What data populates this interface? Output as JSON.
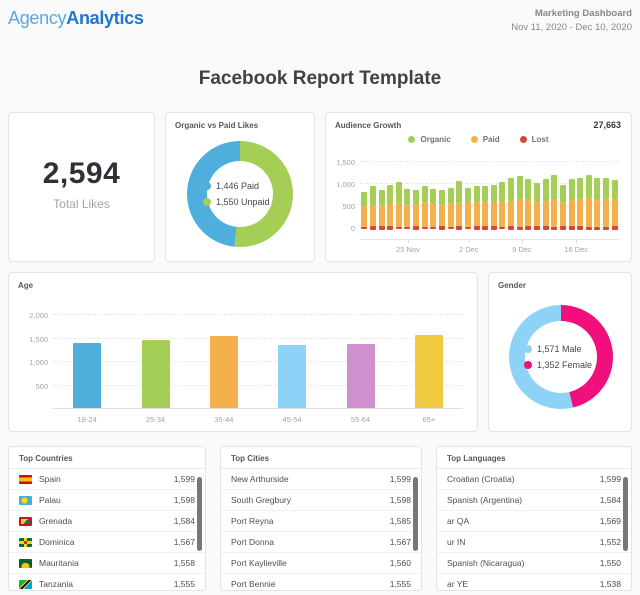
{
  "header": {
    "logo_part1": "Agency",
    "logo_part2": "Analytics",
    "dashboard_title": "Marketing Dashboard",
    "date_range": "Nov 11, 2020 - Dec 10, 2020"
  },
  "page_title": "Facebook Report Template",
  "total_likes": {
    "value": "2,594",
    "label": "Total Likes"
  },
  "colors": {
    "blue": "#4FAEDB",
    "green": "#A4CE55",
    "orange": "#F5B04E",
    "red": "#D0493F",
    "sky": "#8DD3F8",
    "orchid": "#CE90CE",
    "yellow": "#EFC93F",
    "pink": "#F00F7B"
  },
  "chart_data": [
    {
      "id": "organic_vs_paid",
      "type": "pie",
      "title": "Organic vs Paid Likes",
      "legend_position": "center",
      "segments": [
        {
          "label": "1,446 Paid",
          "value": 1446,
          "color": "#4FAEDB"
        },
        {
          "label": "1,550 Unpaid",
          "value": 1550,
          "color": "#A4CE55"
        }
      ],
      "draw": [
        1,
        0
      ]
    },
    {
      "id": "audience_growth",
      "type": "bar",
      "stacked": true,
      "title": "Audience Growth",
      "total": "27,663",
      "legend": [
        {
          "label": "Organic",
          "color": "#A4CE55"
        },
        {
          "label": "Paid",
          "color": "#F5B04E"
        },
        {
          "label": "Lost",
          "color": "#D0493F"
        }
      ],
      "ylim": [
        -150,
        1500
      ],
      "grid": true,
      "yticks": [
        {
          "label": "1,500",
          "value": 1500
        },
        {
          "label": "1,000",
          "value": 1000
        },
        {
          "label": "500",
          "value": 500
        },
        {
          "label": "0",
          "value": 0
        }
      ],
      "xticks": [
        {
          "label": "25 Nov",
          "pos": 0.185
        },
        {
          "label": "2 Dec",
          "pos": 0.42
        },
        {
          "label": "9 Dec",
          "pos": 0.625
        },
        {
          "label": "16 Dec",
          "pos": 0.835
        }
      ],
      "series": [
        {
          "name": "Paid",
          "color": "#F5B04E",
          "values": [
            480,
            470,
            500,
            520,
            540,
            500,
            510,
            560,
            530,
            500,
            520,
            540,
            560,
            570,
            560,
            540,
            580,
            590,
            620,
            600,
            570,
            580,
            640,
            560,
            600,
            640,
            650,
            610,
            630,
            640
          ]
        },
        {
          "name": "Organic",
          "color": "#A4CE55",
          "values": [
            310,
            450,
            330,
            430,
            490,
            370,
            320,
            370,
            320,
            340,
            360,
            500,
            330,
            360,
            370,
            400,
            430,
            510,
            530,
            490,
            420,
            510,
            540,
            400,
            480,
            470,
            520,
            490,
            490,
            420
          ]
        },
        {
          "name": "Lost",
          "color": "#D0493F",
          "values": [
            -60,
            -70,
            -80,
            -75,
            -60,
            -55,
            -70,
            -65,
            -60,
            -70,
            -65,
            -70,
            -60,
            -75,
            -80,
            -70,
            -65,
            -75,
            -85,
            -70,
            -75,
            -80,
            -85,
            -70,
            -75,
            -80,
            -85,
            -90,
            -85,
            -80
          ]
        }
      ]
    },
    {
      "id": "age",
      "type": "bar",
      "title": "Age",
      "categories": [
        "18-24",
        "25-34",
        "35-44",
        "45-54",
        "55-64",
        "65+"
      ],
      "values": [
        1370,
        1430,
        1520,
        1330,
        1350,
        1540
      ],
      "colors": [
        "#4FAEDB",
        "#A4CE55",
        "#F5B04E",
        "#8DD3F8",
        "#CE90CE",
        "#EFC93F"
      ],
      "ylim": [
        0,
        2100
      ],
      "grid": true,
      "yticks": [
        {
          "label": "2,000",
          "value": 2000
        },
        {
          "label": "1,500",
          "value": 1500
        },
        {
          "label": "1,000",
          "value": 1000
        },
        {
          "label": "500",
          "value": 500
        }
      ]
    },
    {
      "id": "gender",
      "type": "pie",
      "title": "Gender",
      "legend_position": "center",
      "segments": [
        {
          "label": "1,571 Male",
          "value": 1571,
          "color": "#8DD3F8"
        },
        {
          "label": "1,352 Female",
          "value": 1352,
          "color": "#F00F7B"
        }
      ],
      "draw": [
        1,
        0
      ]
    }
  ],
  "tables": [
    {
      "title": "Top Countries",
      "rows": [
        {
          "icon": "flag-spain",
          "name": "Spain",
          "value": "1,599"
        },
        {
          "icon": "flag-palau",
          "name": "Palau",
          "value": "1,598"
        },
        {
          "icon": "flag-grenada",
          "name": "Grenada",
          "value": "1,584"
        },
        {
          "icon": "flag-dominica",
          "name": "Dominica",
          "value": "1,567"
        },
        {
          "icon": "flag-mauritania",
          "name": "Mauritania",
          "value": "1,558"
        },
        {
          "icon": "flag-tanzania",
          "name": "Tanzania",
          "value": "1,555"
        }
      ]
    },
    {
      "title": "Top Cities",
      "rows": [
        {
          "name": "New Arthurside",
          "value": "1,599"
        },
        {
          "name": "South Gregbury",
          "value": "1,598"
        },
        {
          "name": "Port Reyna",
          "value": "1,585"
        },
        {
          "name": "Port Donna",
          "value": "1,567"
        },
        {
          "name": "Port Kaylieville",
          "value": "1,560"
        },
        {
          "name": "Port Bennie",
          "value": "1,555"
        }
      ]
    },
    {
      "title": "Top Languages",
      "rows": [
        {
          "name": "Croatian (Croatia)",
          "value": "1,599"
        },
        {
          "name": "Spanish (Argentina)",
          "value": "1,584"
        },
        {
          "name": "ar QA",
          "value": "1,569"
        },
        {
          "name": "ur IN",
          "value": "1,552"
        },
        {
          "name": "Spanish (Nicaragua)",
          "value": "1,550"
        },
        {
          "name": "ar YE",
          "value": "1,538"
        }
      ]
    }
  ]
}
